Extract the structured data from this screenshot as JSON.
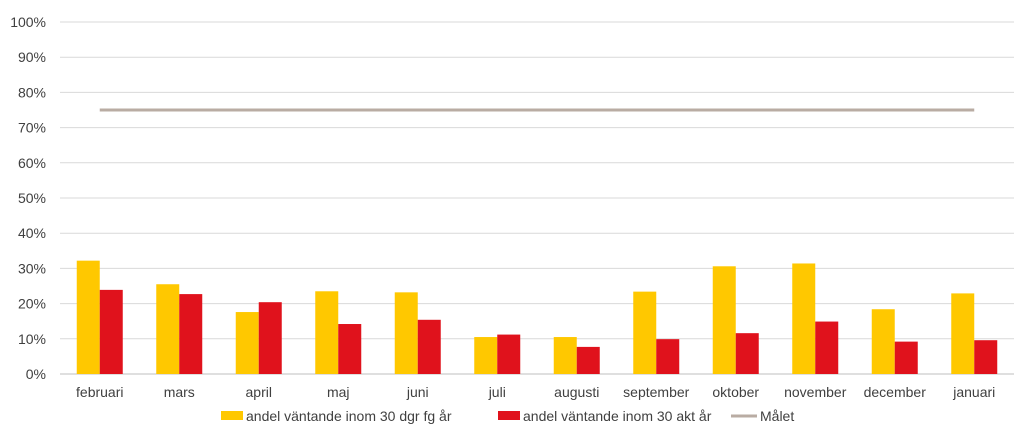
{
  "chart_data": {
    "type": "bar",
    "categories": [
      "februari",
      "mars",
      "april",
      "maj",
      "juni",
      "juli",
      "augusti",
      "september",
      "oktober",
      "november",
      "december",
      "januari"
    ],
    "series": [
      {
        "name": "andel väntande inom 30 dgr fg år",
        "kind": "bar",
        "color": "#FFC800",
        "values": [
          32.2,
          25.5,
          17.6,
          23.5,
          23.2,
          10.5,
          10.5,
          23.4,
          30.6,
          31.4,
          18.4,
          22.9
        ]
      },
      {
        "name": "andel väntande inom 30 akt år",
        "kind": "bar",
        "color": "#E0121C",
        "values": [
          23.9,
          22.7,
          20.4,
          14.2,
          15.4,
          11.2,
          7.7,
          9.9,
          11.6,
          14.9,
          9.2,
          9.6
        ]
      },
      {
        "name": "Målet",
        "kind": "line",
        "color": "#B9ACA3",
        "values": [
          75,
          75,
          75,
          75,
          75,
          75,
          75,
          75,
          75,
          75,
          75,
          75
        ]
      }
    ],
    "yticks": [
      "0%",
      "10%",
      "20%",
      "30%",
      "40%",
      "50%",
      "60%",
      "70%",
      "80%",
      "90%",
      "100%"
    ],
    "ylim": [
      0,
      100
    ],
    "grid": true,
    "legend_position": "bottom"
  }
}
